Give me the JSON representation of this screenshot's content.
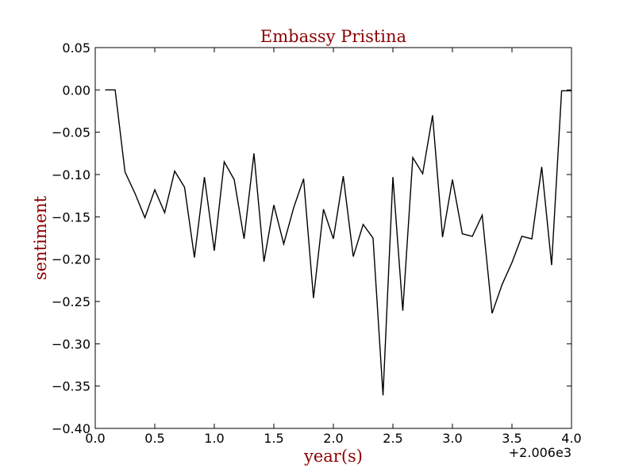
{
  "chart_data": {
    "type": "line",
    "title": "Embassy Pristina",
    "xlabel": "year(s)",
    "ylabel": "sentiment",
    "x_offset_label": "+2.006e3",
    "xlim": [
      0.0,
      4.0
    ],
    "ylim": [
      -0.4,
      0.05
    ],
    "xticks": [
      0.0,
      0.5,
      1.0,
      1.5,
      2.0,
      2.5,
      3.0,
      3.5,
      4.0
    ],
    "xtick_labels": [
      "0.0",
      "0.5",
      "1.0",
      "1.5",
      "2.0",
      "2.5",
      "3.0",
      "3.5",
      "4.0"
    ],
    "yticks": [
      0.05,
      0.0,
      -0.05,
      -0.1,
      -0.15,
      -0.2,
      -0.25,
      -0.3,
      -0.35,
      -0.4
    ],
    "ytick_labels": [
      "0.05",
      "0.00",
      "−0.05",
      "−0.10",
      "−0.15",
      "−0.20",
      "−0.25",
      "−0.30",
      "−0.35",
      "−0.40"
    ],
    "grid": false,
    "colors": {
      "title": "#8b0000",
      "labels": "#8b0000",
      "line": "#000000"
    },
    "series": [
      {
        "x": [
          0.083,
          0.167,
          0.25,
          0.333,
          0.417,
          0.5,
          0.583,
          0.667,
          0.75,
          0.833,
          0.917,
          1.0,
          1.083,
          1.167,
          1.25,
          1.333,
          1.417,
          1.5,
          1.583,
          1.667,
          1.75,
          1.833,
          1.917,
          2.0,
          2.083,
          2.167,
          2.25,
          2.333,
          2.417,
          2.5,
          2.583,
          2.667,
          2.75,
          2.833,
          2.917,
          3.0,
          3.083,
          3.167,
          3.25,
          3.333,
          3.417,
          3.5,
          3.583,
          3.667,
          3.75,
          3.833,
          3.917,
          4.0
        ],
        "y": [
          0.0,
          0.0,
          -0.097,
          -0.122,
          -0.151,
          -0.118,
          -0.145,
          -0.096,
          -0.115,
          -0.198,
          -0.103,
          -0.19,
          -0.085,
          -0.106,
          -0.176,
          -0.075,
          -0.203,
          -0.136,
          -0.182,
          -0.139,
          -0.105,
          -0.246,
          -0.141,
          -0.176,
          -0.102,
          -0.197,
          -0.159,
          -0.175,
          -0.361,
          -0.103,
          -0.261,
          -0.08,
          -0.099,
          -0.03,
          -0.174,
          -0.106,
          -0.17,
          -0.173,
          -0.148,
          -0.264,
          -0.23,
          -0.204,
          -0.173,
          -0.176,
          -0.091,
          -0.207,
          -0.001,
          -0.001
        ]
      }
    ]
  }
}
